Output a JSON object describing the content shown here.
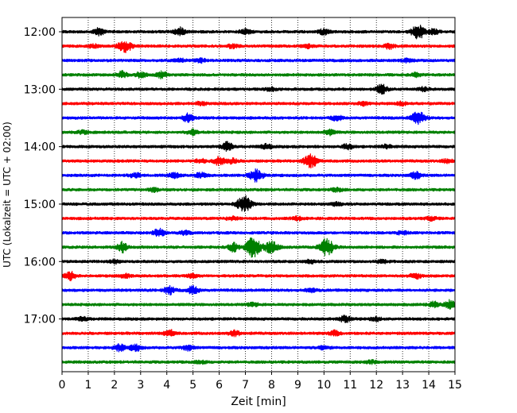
{
  "chart_data": {
    "type": "line",
    "title": "",
    "xlabel": "Zeit  [min]",
    "ylabel": "UTC (Lokalzeit = UTC + 02:00)",
    "xlim": [
      0,
      15
    ],
    "x_ticks": [
      0,
      1,
      2,
      3,
      4,
      5,
      6,
      7,
      8,
      9,
      10,
      11,
      12,
      13,
      14,
      15
    ],
    "y_ticks": [
      {
        "label": "12:00",
        "row": 0
      },
      {
        "label": "13:00",
        "row": 4
      },
      {
        "label": "14:00",
        "row": 8
      },
      {
        "label": "15:00",
        "row": 12
      },
      {
        "label": "16:00",
        "row": 16
      },
      {
        "label": "17:00",
        "row": 20
      }
    ],
    "grid_x": true,
    "row_minutes": 15,
    "color_cycle": [
      "#000000",
      "#ff0000",
      "#0000ff",
      "#008000"
    ],
    "traces": [
      {
        "start": "12:00",
        "events": [
          [
            1.4,
            4
          ],
          [
            4.5,
            5
          ],
          [
            7.0,
            3
          ],
          [
            10.0,
            3
          ],
          [
            13.6,
            8
          ],
          [
            14.2,
            3
          ]
        ]
      },
      {
        "start": "12:15",
        "events": [
          [
            1.2,
            2
          ],
          [
            2.4,
            7
          ],
          [
            6.5,
            2
          ],
          [
            9.4,
            2
          ],
          [
            12.5,
            3
          ]
        ]
      },
      {
        "start": "12:30",
        "events": [
          [
            4.5,
            2
          ],
          [
            5.3,
            2
          ],
          [
            13.2,
            2
          ]
        ]
      },
      {
        "start": "12:45",
        "events": [
          [
            2.3,
            4
          ],
          [
            3.0,
            3
          ],
          [
            3.8,
            4
          ],
          [
            13.5,
            2
          ]
        ]
      },
      {
        "start": "13:00",
        "events": [
          [
            8.0,
            2
          ],
          [
            12.2,
            6
          ],
          [
            13.8,
            2
          ]
        ]
      },
      {
        "start": "13:15",
        "events": [
          [
            5.3,
            2
          ],
          [
            11.5,
            2
          ],
          [
            13.0,
            2
          ]
        ]
      },
      {
        "start": "13:30",
        "events": [
          [
            4.8,
            5
          ],
          [
            10.5,
            3
          ],
          [
            13.6,
            7
          ]
        ]
      },
      {
        "start": "13:45",
        "events": [
          [
            0.8,
            2
          ],
          [
            5.0,
            3
          ],
          [
            10.2,
            3
          ]
        ]
      },
      {
        "start": "14:00",
        "events": [
          [
            6.3,
            5
          ],
          [
            7.8,
            3
          ],
          [
            10.9,
            3
          ],
          [
            12.4,
            2
          ]
        ]
      },
      {
        "start": "14:15",
        "events": [
          [
            5.3,
            2
          ],
          [
            6.0,
            5
          ],
          [
            6.5,
            3
          ],
          [
            9.5,
            8
          ],
          [
            14.7,
            2
          ]
        ]
      },
      {
        "start": "14:30",
        "events": [
          [
            2.8,
            3
          ],
          [
            4.3,
            3
          ],
          [
            5.3,
            3
          ],
          [
            7.4,
            7
          ],
          [
            13.5,
            4
          ]
        ]
      },
      {
        "start": "14:45",
        "events": [
          [
            3.5,
            2
          ],
          [
            10.5,
            2
          ]
        ]
      },
      {
        "start": "15:00",
        "events": [
          [
            6.95,
            10
          ],
          [
            10.5,
            2
          ]
        ]
      },
      {
        "start": "15:15",
        "events": [
          [
            6.5,
            2
          ],
          [
            9.0,
            2
          ],
          [
            14.1,
            2
          ]
        ]
      },
      {
        "start": "15:30",
        "events": [
          [
            3.7,
            5
          ],
          [
            4.7,
            2
          ],
          [
            13.0,
            2
          ]
        ]
      },
      {
        "start": "15:45",
        "events": [
          [
            2.3,
            6
          ],
          [
            6.55,
            5
          ],
          [
            7.3,
            12
          ],
          [
            8.0,
            7
          ],
          [
            10.1,
            11
          ]
        ]
      },
      {
        "start": "16:00",
        "events": [
          [
            2.0,
            2
          ],
          [
            9.5,
            2
          ],
          [
            12.2,
            2
          ]
        ]
      },
      {
        "start": "16:15",
        "events": [
          [
            0.3,
            5
          ],
          [
            2.4,
            2
          ],
          [
            5.0,
            2
          ],
          [
            13.5,
            3
          ]
        ]
      },
      {
        "start": "16:30",
        "events": [
          [
            4.1,
            5
          ],
          [
            5.0,
            5
          ],
          [
            9.5,
            2
          ]
        ]
      },
      {
        "start": "16:45",
        "events": [
          [
            7.3,
            2
          ],
          [
            14.2,
            3
          ],
          [
            14.8,
            5
          ]
        ]
      },
      {
        "start": "17:00",
        "events": [
          [
            0.8,
            2
          ],
          [
            10.8,
            4
          ],
          [
            12.0,
            2
          ]
        ]
      },
      {
        "start": "17:15",
        "events": [
          [
            4.1,
            4
          ],
          [
            6.6,
            3
          ],
          [
            10.4,
            3
          ]
        ]
      },
      {
        "start": "17:30",
        "events": [
          [
            2.2,
            4
          ],
          [
            2.8,
            4
          ],
          [
            4.8,
            3
          ],
          [
            10.0,
            2
          ]
        ]
      },
      {
        "start": "17:45",
        "events": [
          [
            5.3,
            2
          ],
          [
            11.8,
            2
          ]
        ]
      }
    ]
  }
}
